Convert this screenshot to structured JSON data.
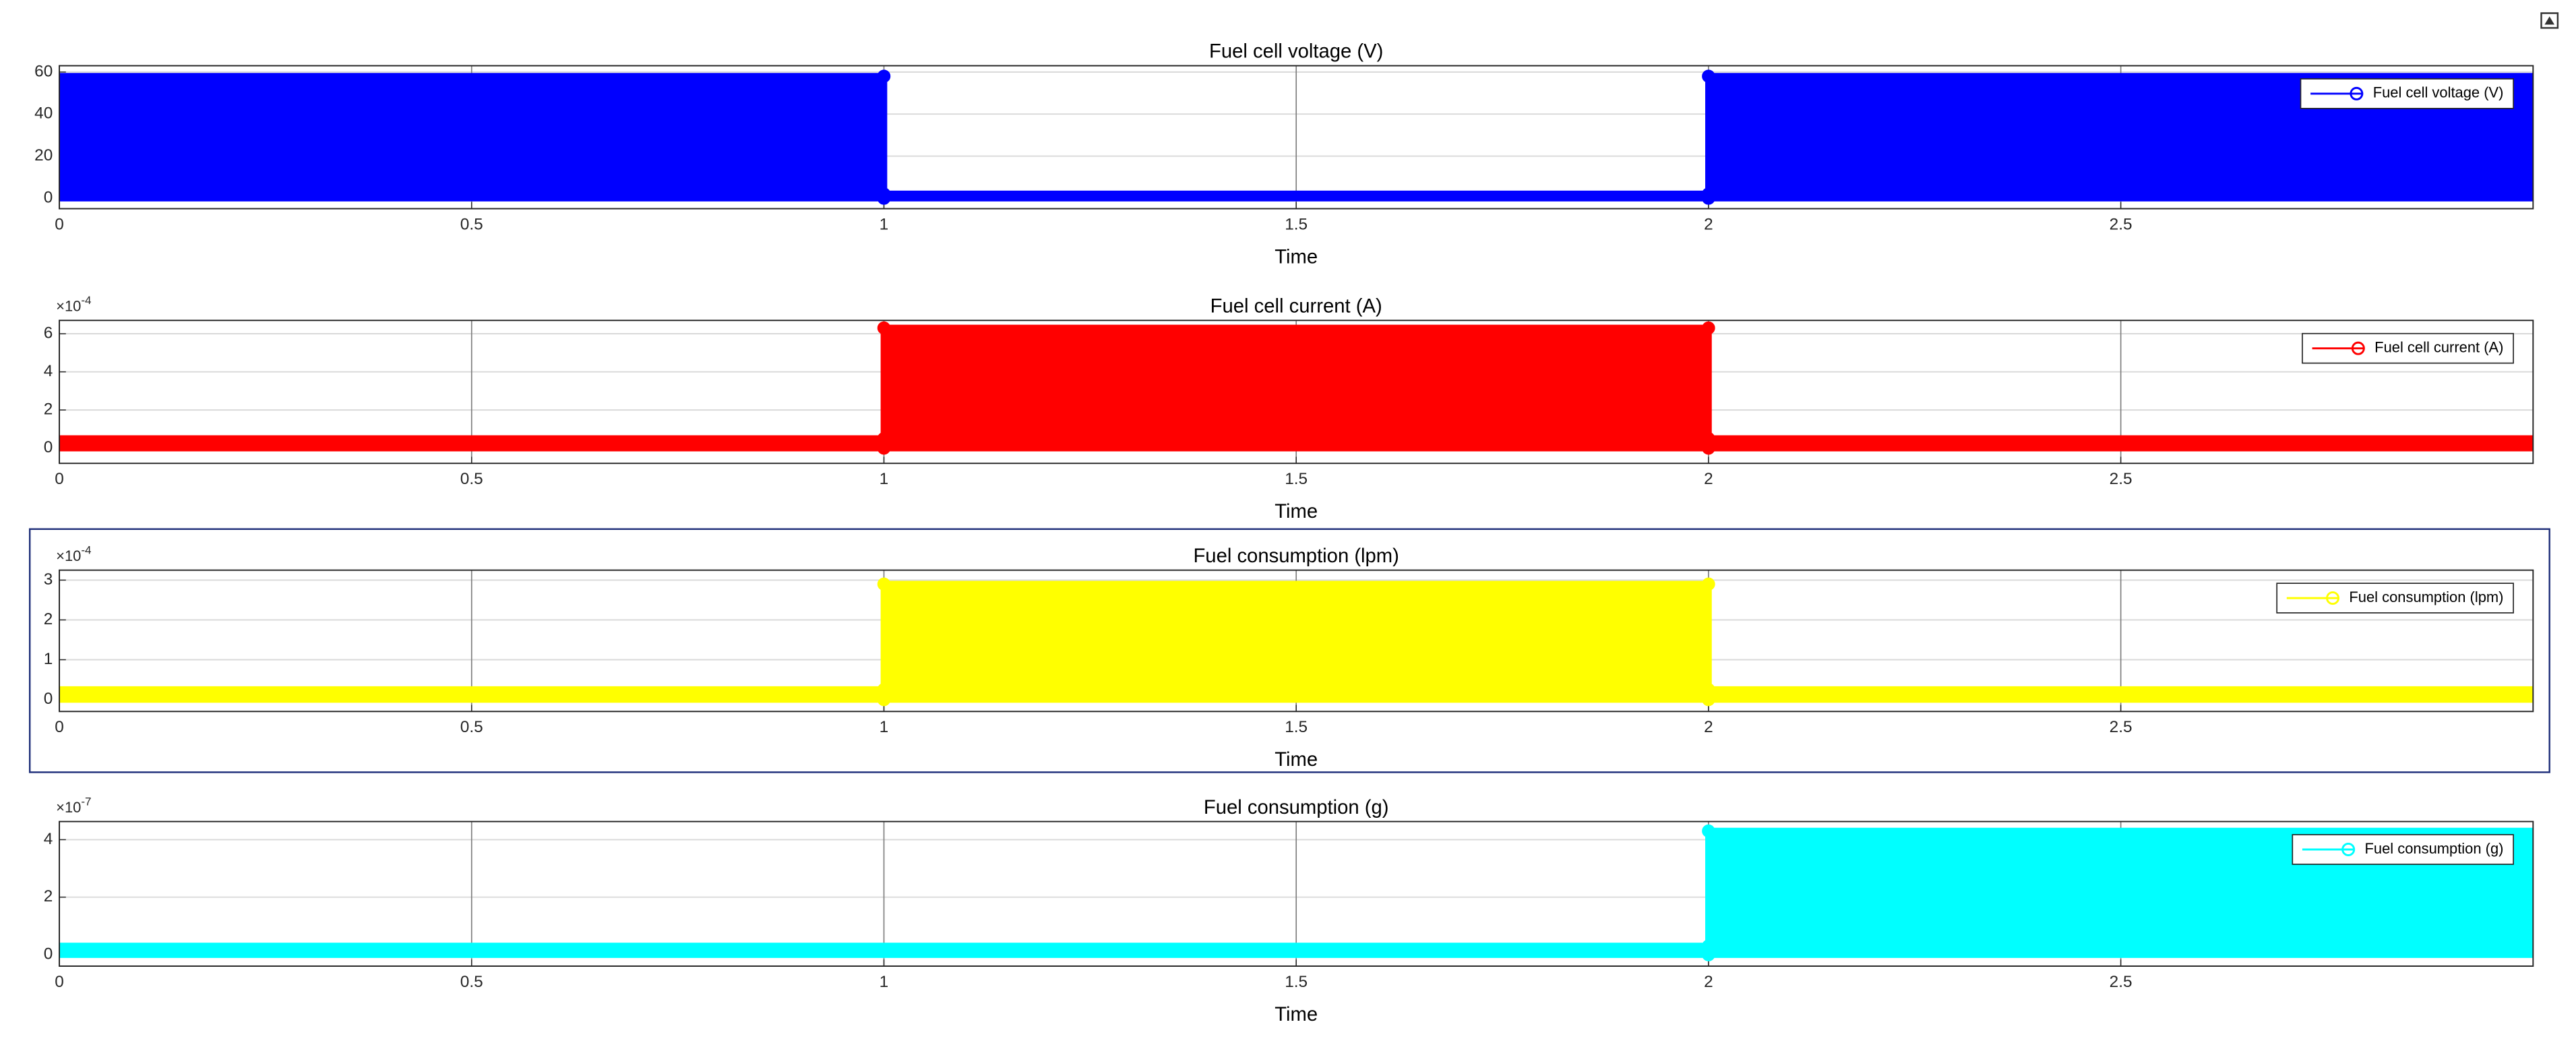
{
  "chart_data": [
    {
      "type": "band",
      "title": "Fuel cell voltage (V)",
      "xlabel": "Time",
      "x": [
        0,
        1,
        1,
        2,
        2,
        3
      ],
      "series": [
        {
          "name": "Fuel cell voltage (V)",
          "color": "#0000ff",
          "values": [
            58,
            58,
            2,
            2,
            58,
            58
          ],
          "lower": [
            0,
            0,
            0,
            0,
            0,
            0
          ]
        }
      ],
      "xlim": [
        0,
        3
      ],
      "xticks": [
        0,
        0.5,
        1,
        1.5,
        2,
        2.5
      ],
      "ylim": [
        -5,
        63
      ],
      "yticks": [
        0,
        20,
        40,
        60
      ],
      "grid": true,
      "legend": "upper right"
    },
    {
      "type": "band",
      "title": "Fuel cell current (A)",
      "xlabel": "Time",
      "x": [
        0,
        1,
        1,
        2,
        2,
        3
      ],
      "series": [
        {
          "name": "Fuel cell current (A)",
          "color": "#ff0000",
          "values": [
            0.5,
            0.5,
            6.3,
            6.3,
            0.5,
            0.5
          ],
          "lower": [
            0,
            0,
            0,
            0,
            0,
            0
          ]
        }
      ],
      "xlim": [
        0,
        3
      ],
      "xticks": [
        0,
        0.5,
        1,
        1.5,
        2,
        2.5
      ],
      "ylim": [
        -0.8,
        6.7
      ],
      "yticks": [
        0,
        2,
        4,
        6
      ],
      "y_scale_label": {
        "base": "×10",
        "exponent": "-4"
      },
      "grid": true,
      "legend": "upper right"
    },
    {
      "type": "band",
      "title": "Fuel consumption (lpm)",
      "xlabel": "Time",
      "x": [
        0,
        1,
        1,
        2,
        2,
        3
      ],
      "series": [
        {
          "name": "Fuel consumption (lpm)",
          "color": "#ffff00",
          "values": [
            0.25,
            0.25,
            2.9,
            2.9,
            0.25,
            0.25
          ],
          "lower": [
            0,
            0,
            0,
            0,
            0,
            0
          ]
        }
      ],
      "xlim": [
        0,
        3
      ],
      "xticks": [
        0,
        0.5,
        1,
        1.5,
        2,
        2.5
      ],
      "ylim": [
        -0.3,
        3.25
      ],
      "yticks": [
        0,
        1,
        2,
        3
      ],
      "y_scale_label": {
        "base": "×10",
        "exponent": "-4"
      },
      "grid": true,
      "legend": "upper right"
    },
    {
      "type": "band",
      "title": "Fuel consumption (g)",
      "xlabel": "Time",
      "x": [
        0,
        2,
        2,
        3
      ],
      "series": [
        {
          "name": "Fuel consumption (g)",
          "color": "#00ffff",
          "values": [
            0.3,
            0.3,
            4.3,
            4.3
          ],
          "lower": [
            0,
            0,
            0,
            0
          ]
        }
      ],
      "xlim": [
        0,
        3
      ],
      "xticks": [
        0,
        0.5,
        1,
        1.5,
        2,
        2.5
      ],
      "ylim": [
        -0.4,
        4.63
      ],
      "yticks": [
        0,
        2,
        4
      ],
      "y_scale_label": {
        "base": "×10",
        "exponent": "-7"
      },
      "grid": true,
      "legend": "upper right"
    }
  ]
}
